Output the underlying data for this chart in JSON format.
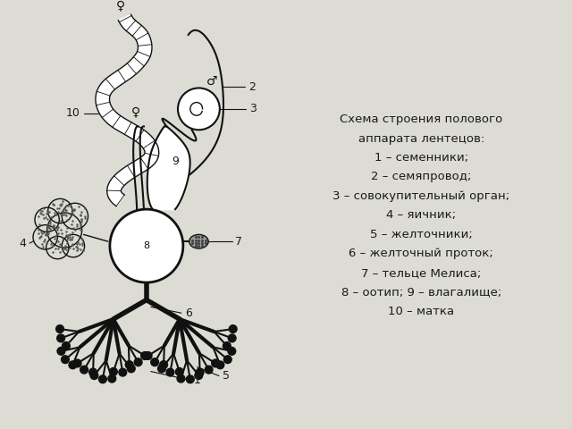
{
  "title_lines": [
    "Схема строения полового",
    "аппарата лентецов:",
    "1 – семенники;",
    "2 – семяпровод;",
    "3 – совокупительный орган;",
    "4 – яичник;",
    "5 – желточники;",
    "6 – желточный проток;",
    "7 – тельце Мелиса;",
    "8 – оотип; 9 – влагалище;",
    "10 – матка"
  ],
  "bg_color": "#dcdcd4",
  "text_color": "#1a1a1a",
  "diagram_color": "#111111",
  "fig_width": 6.4,
  "fig_height": 4.8
}
